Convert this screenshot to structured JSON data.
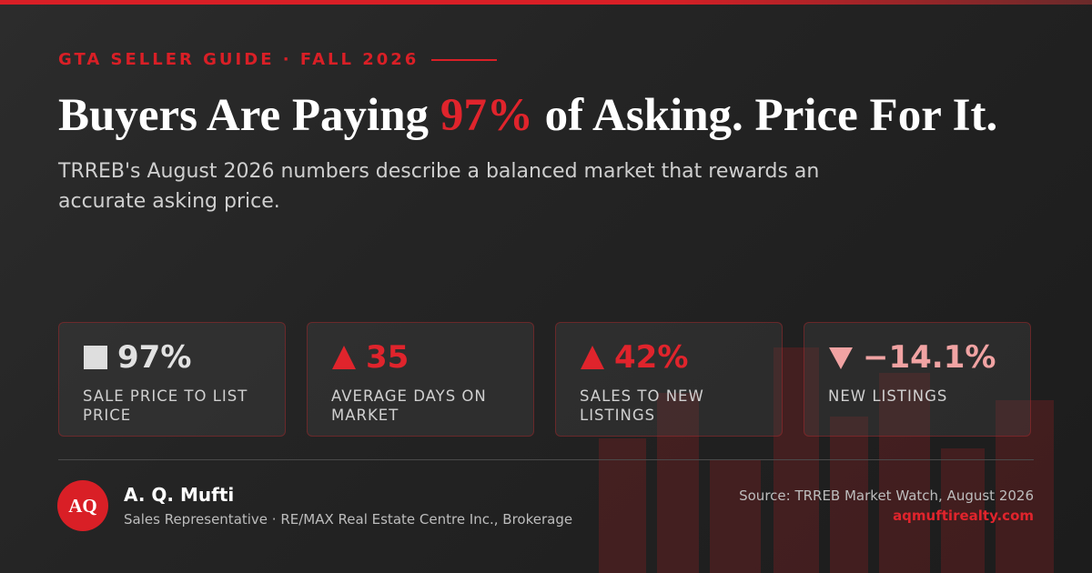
{
  "eyebrow": "GTA SELLER GUIDE · FALL 2026",
  "title": {
    "before": "Buyers Are Paying",
    "highlight": "97%",
    "after": "of Asking. Price For It."
  },
  "subtitle": "TRREB's August 2026 numbers describe a balanced market that rewards an accurate asking price.",
  "stats": [
    {
      "value": "97%",
      "label": "SALE PRICE TO LIST PRICE"
    },
    {
      "value": "35",
      "label": "AVERAGE DAYS ON MARKET"
    },
    {
      "value": "42%",
      "label": "SALES TO NEW LISTINGS"
    },
    {
      "value": "−14.1%",
      "label": "NEW LISTINGS"
    }
  ],
  "author": {
    "initials": "AQ",
    "name": "A. Q. Mufti",
    "role": "Sales Representative · RE/MAX Real Estate Centre Inc., Brokerage"
  },
  "source": "Source: TRREB Market Watch, August 2026",
  "website": "aqmuftirealty.com"
}
